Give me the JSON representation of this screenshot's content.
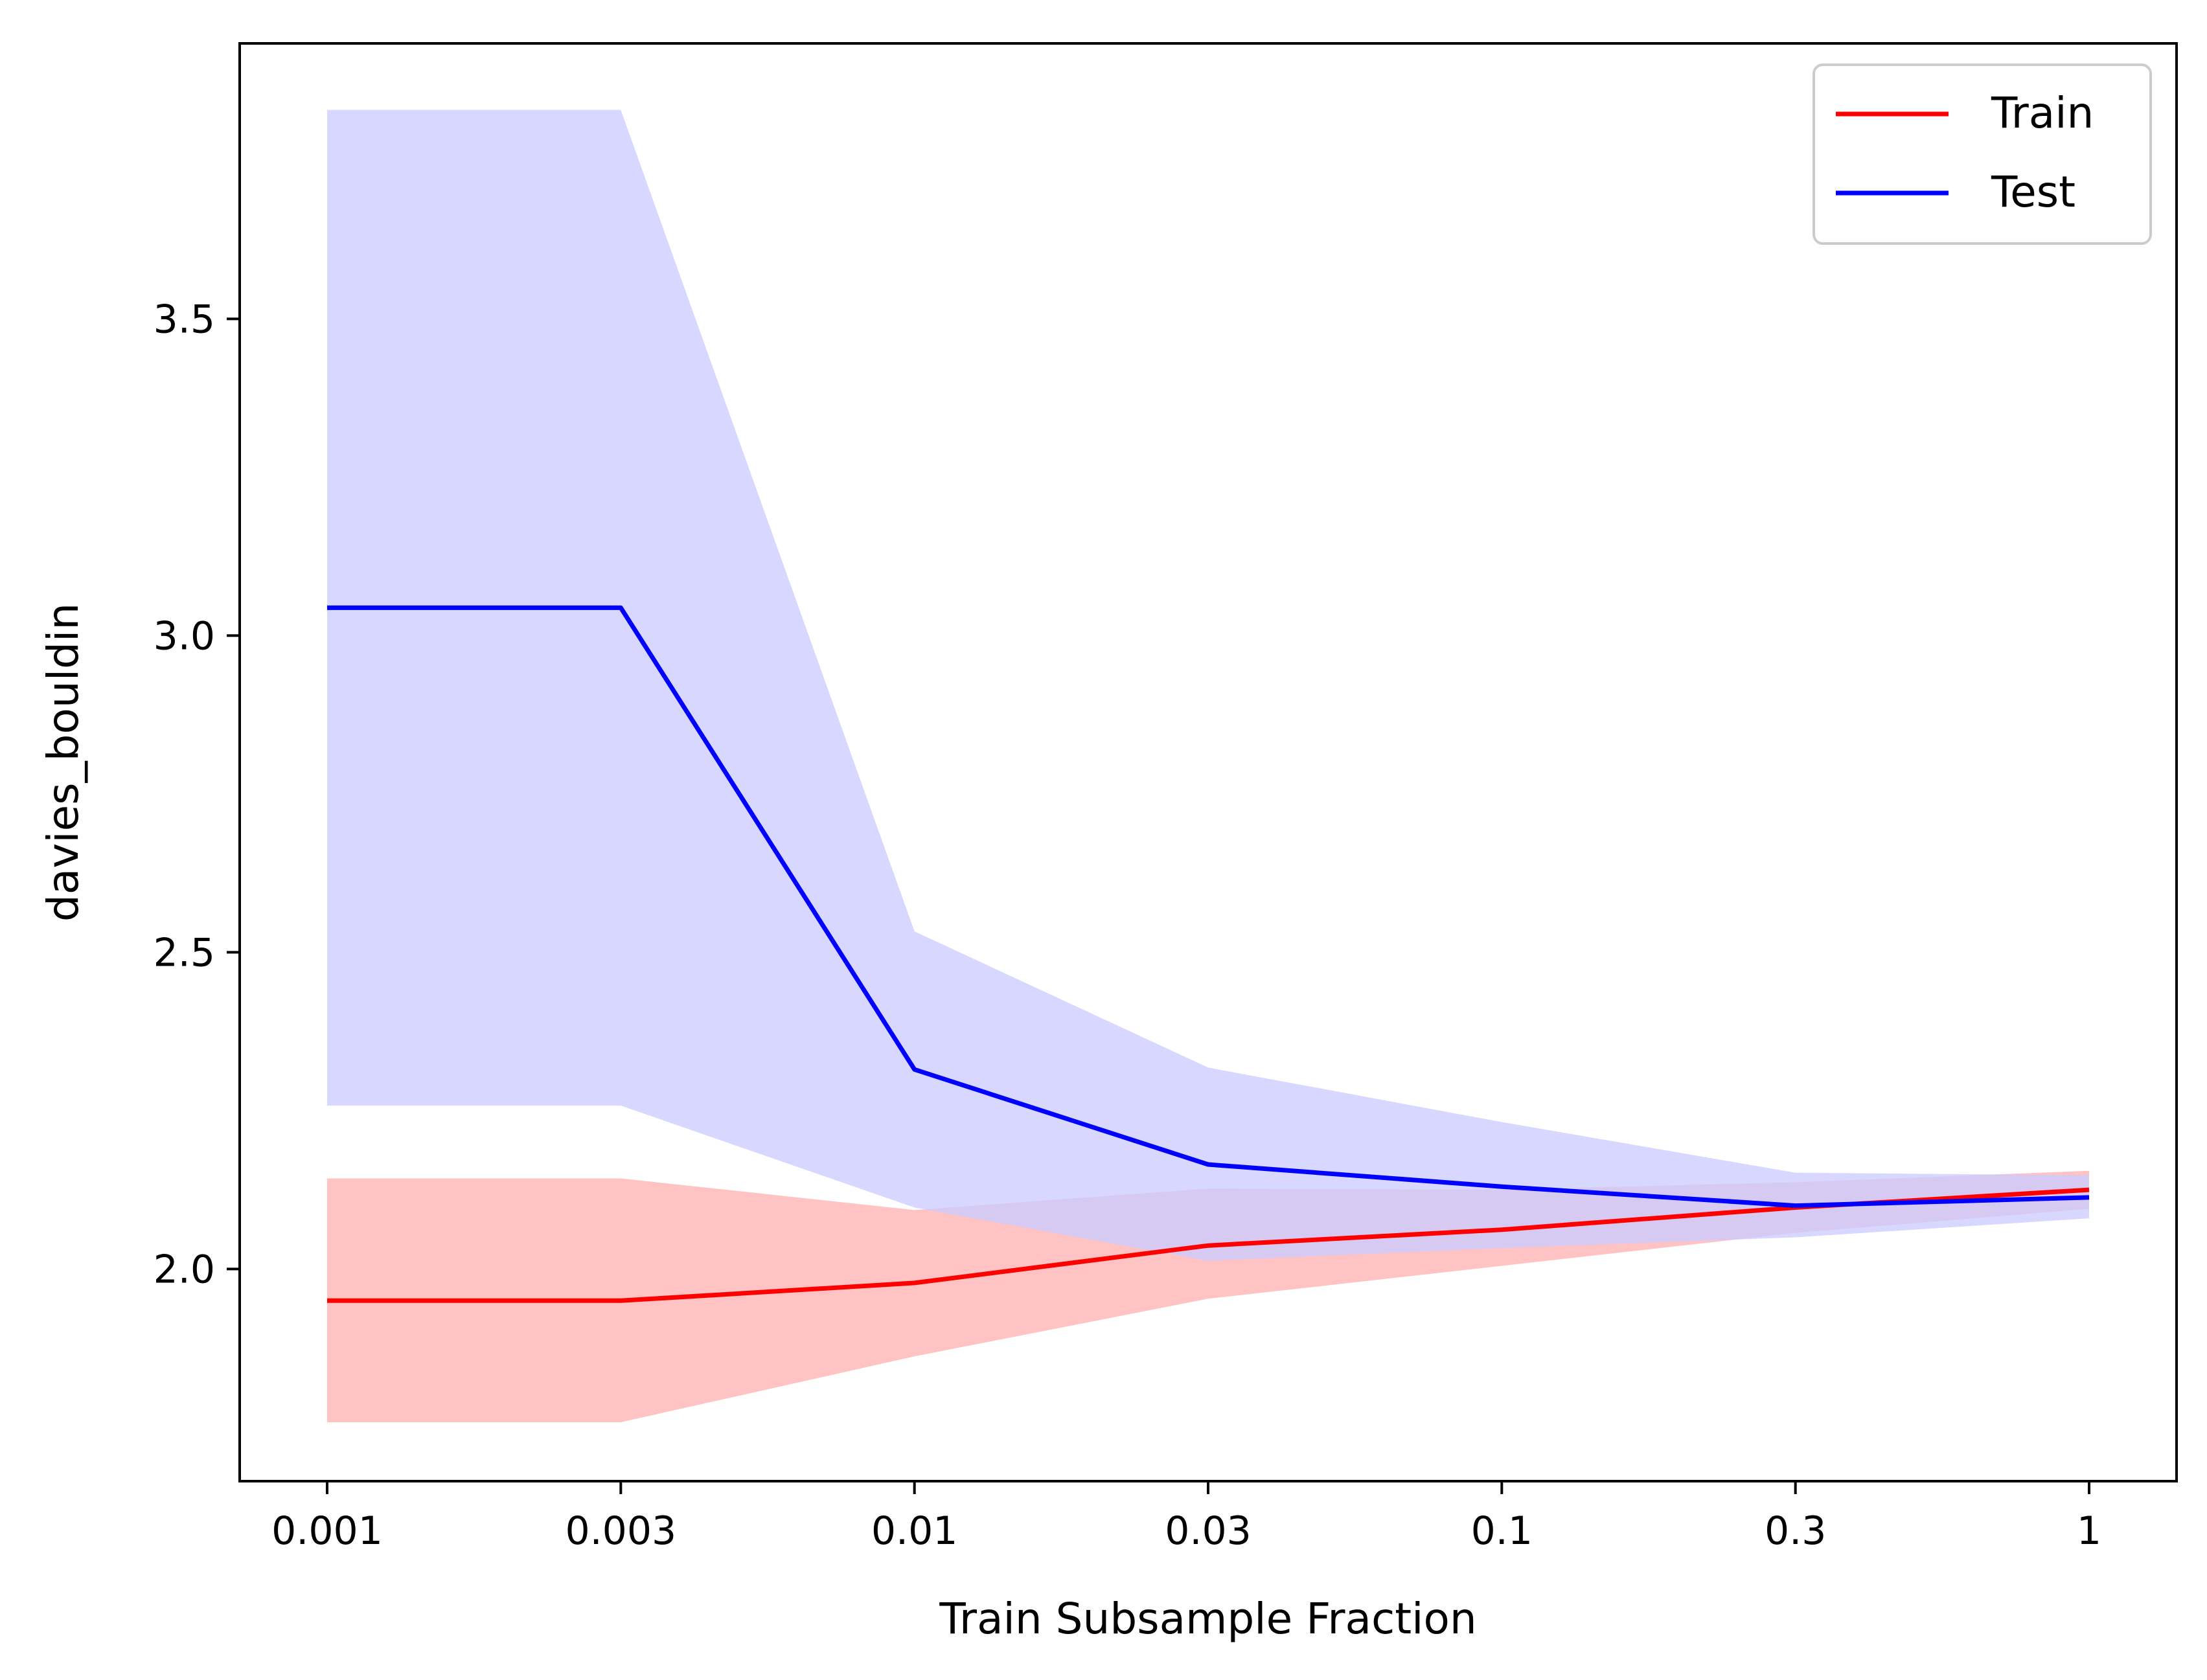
{
  "chart_data": {
    "type": "line",
    "xlabel": "Train Subsample Fraction",
    "ylabel": "davies_bouldin",
    "x_categories": [
      "0.001",
      "0.003",
      "0.01",
      "0.03",
      "0.1",
      "0.3",
      "1"
    ],
    "ylim": [
      1.665,
      3.935
    ],
    "y_ticks": [
      2.0,
      2.5,
      3.0,
      3.5
    ],
    "y_tick_labels": [
      "2.0",
      "2.5",
      "3.0",
      "3.5"
    ],
    "grid": false,
    "legend_position": "top-right",
    "series": [
      {
        "name": "Train",
        "color": "#ff0000",
        "band_color": "#ffb2b2",
        "values": [
          1.95,
          1.95,
          1.978,
          2.037,
          2.062,
          2.097,
          2.125
        ],
        "lower": [
          1.758,
          1.758,
          1.862,
          1.953,
          2.005,
          2.057,
          2.095
        ],
        "upper": [
          2.143,
          2.143,
          2.093,
          2.127,
          2.125,
          2.137,
          2.155
        ]
      },
      {
        "name": "Test",
        "color": "#0000ff",
        "band_color": "#ccccff",
        "values": [
          3.044,
          3.044,
          2.315,
          2.165,
          2.13,
          2.1,
          2.113
        ],
        "lower": [
          2.258,
          2.258,
          2.097,
          2.013,
          2.033,
          2.05,
          2.08
        ],
        "upper": [
          3.83,
          3.83,
          2.533,
          2.318,
          2.232,
          2.152,
          2.148
        ]
      }
    ]
  }
}
